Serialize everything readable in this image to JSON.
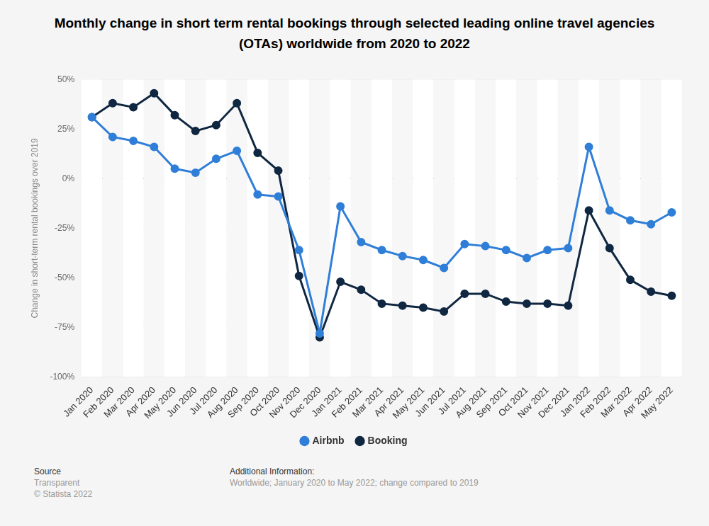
{
  "chart_data": {
    "type": "line",
    "title": "Monthly change in short term rental bookings through selected leading online travel agencies (OTAs) worldwide from 2020 to 2022",
    "y_label": "Change in short-term rental bookings over 2019",
    "categories": [
      "Jan 2020",
      "Feb 2020",
      "Mar 2020",
      "Apr 2020",
      "May 2020",
      "Jun 2020",
      "Jul 2020",
      "Aug 2020",
      "Sep 2020",
      "Oct 2020",
      "Nov 2020",
      "Dec 2020",
      "Jan 2021",
      "Feb 2021",
      "Mar 2021",
      "Apr 2021",
      "May 2021",
      "Jun 2021",
      "Jul 2021",
      "Aug 2021",
      "Sep 2021",
      "Oct 2021",
      "Nov 2021",
      "Dec 2021",
      "Jan 2022",
      "Feb 2022",
      "Mar 2022",
      "Apr 2022",
      "May 2022"
    ],
    "series": [
      {
        "name": "Airbnb",
        "color": "#2f7ed8",
        "values": [
          31,
          21,
          19,
          16,
          5,
          3,
          10,
          14,
          -8,
          -9,
          -36,
          -78,
          -14,
          -32,
          -36,
          -39,
          -41,
          -45,
          -33,
          -34,
          -36,
          -40,
          -36,
          -35,
          16,
          -16,
          -21,
          -23,
          -17
        ]
      },
      {
        "name": "Booking",
        "color": "#0f2741",
        "values": [
          31,
          38,
          36,
          43,
          32,
          24,
          27,
          38,
          13,
          4,
          -49,
          -80,
          -52,
          -56,
          -63,
          -64,
          -65,
          -67,
          -58,
          -58,
          -62,
          -63,
          -63,
          -64,
          -16,
          -35,
          -51,
          -57,
          -59
        ]
      }
    ],
    "ylim": [
      -100,
      50
    ],
    "yticks": [
      {
        "value": -100,
        "label": "-100%"
      },
      {
        "value": -75,
        "label": "-75%"
      },
      {
        "value": -50,
        "label": "-50%"
      },
      {
        "value": -25,
        "label": "-25%"
      },
      {
        "value": 0,
        "label": "0%"
      },
      {
        "value": 25,
        "label": "25%"
      },
      {
        "value": 50,
        "label": "50%"
      }
    ],
    "grid": true,
    "legend": "bottom",
    "marker": "circle",
    "source": [
      "Source",
      "Transparent",
      "© Statista 2022"
    ],
    "additional_info": [
      "Additional Information:",
      "Worldwide; January 2020 to May 2022; change compared to 2019"
    ]
  }
}
